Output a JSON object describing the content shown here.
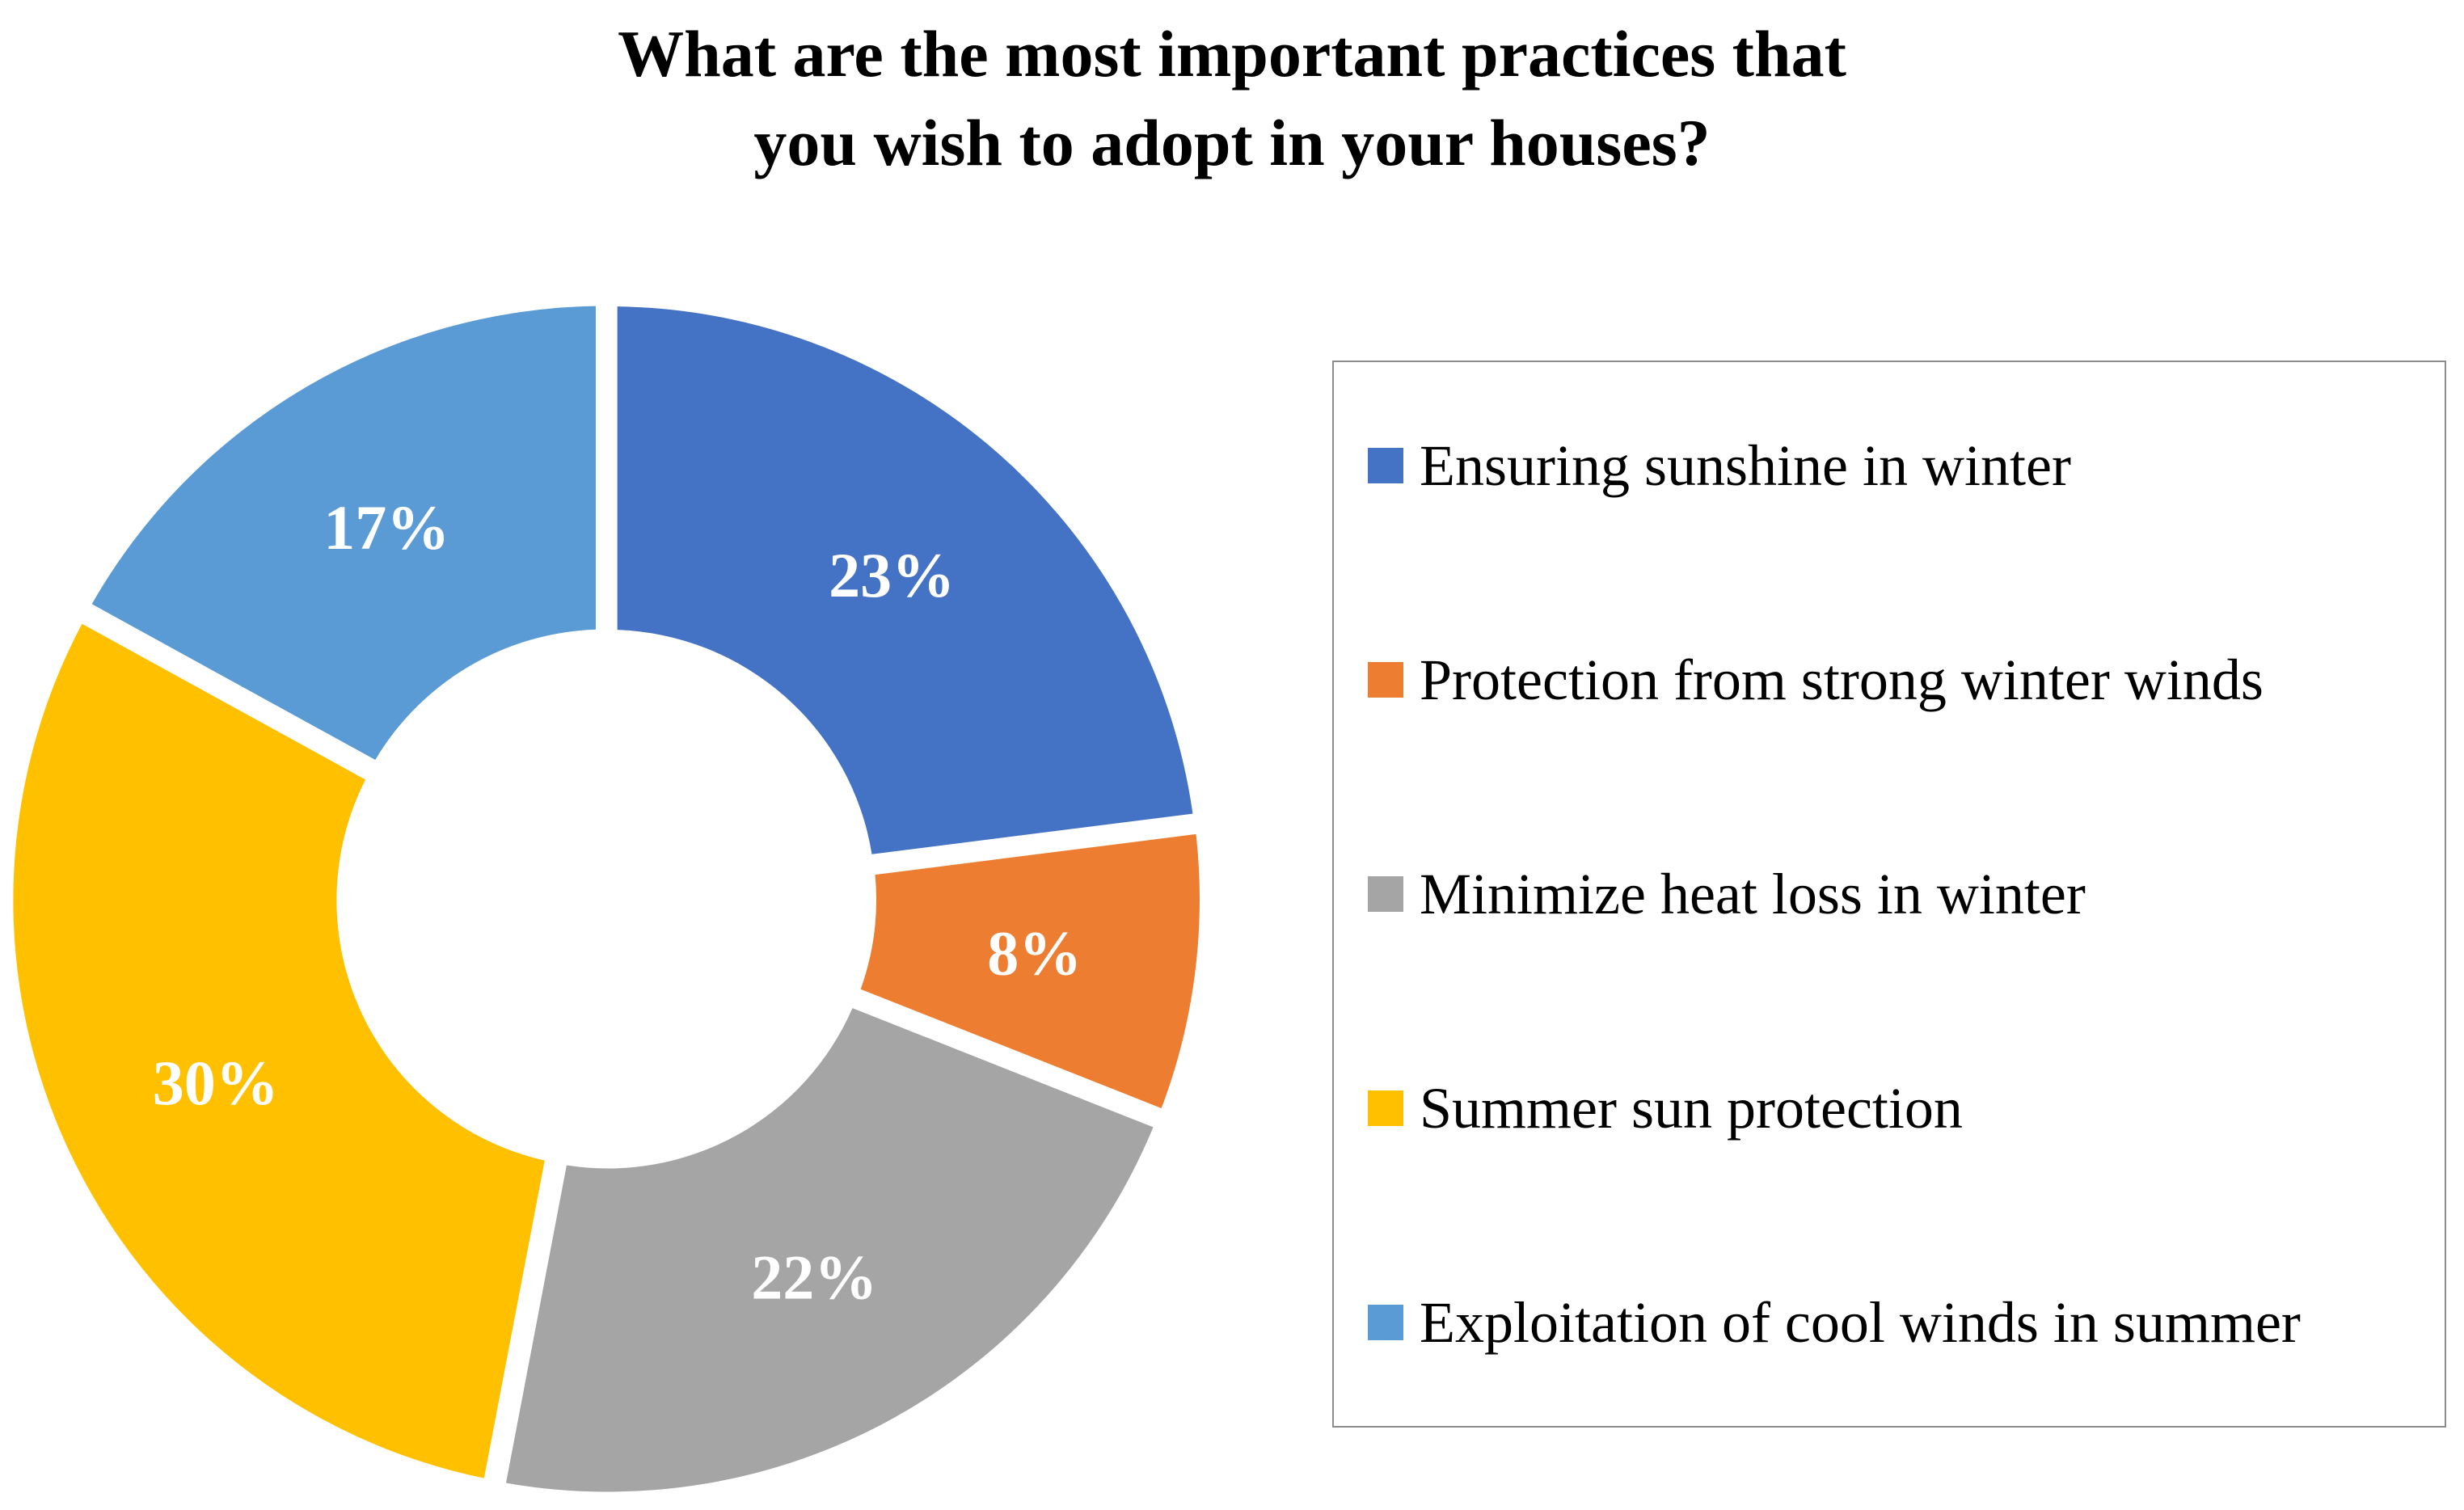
{
  "chart_data": {
    "type": "pie",
    "variant": "donut",
    "title_lines": [
      "What are the most important practices that",
      "you wish to adopt in your houses?"
    ],
    "legend_position": "right",
    "slices": [
      {
        "label": "Ensuring sunshine in winter",
        "value": 23,
        "display": "23%",
        "color": "#4472C4"
      },
      {
        "label": "Protection from strong winter winds",
        "value": 8,
        "display": "8%",
        "color": "#ED7D31"
      },
      {
        "label": "Minimize heat loss in winter",
        "value": 22,
        "display": "22%",
        "color": "#A5A5A5"
      },
      {
        "label": "Summer sun protection",
        "value": 30,
        "display": "30%",
        "color": "#FFC000"
      },
      {
        "label": "Exploitation of cool winds in summer",
        "value": 17,
        "display": "17%",
        "color": "#5B9BD5"
      }
    ]
  }
}
